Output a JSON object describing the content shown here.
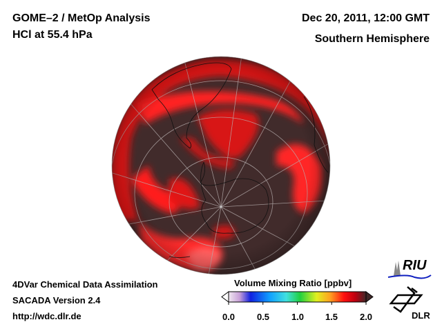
{
  "header": {
    "title": "GOME–2 / MetOp Analysis",
    "subtitle": "HCl at 55.4 hPa",
    "date": "Dec 20, 2011, 12:00 GMT",
    "region": "Southern Hemisphere"
  },
  "footer": {
    "line1": "4DVar Chemical Data Assimilation",
    "line2": "SACADA Version 2.4",
    "line3": "http://wdc.dlr.de"
  },
  "colorbar": {
    "title": "Volume Mixing Ratio [ppbv]",
    "ticks": [
      "0.0",
      "0.5",
      "1.0",
      "1.5",
      "2.0"
    ],
    "range": [
      0.0,
      2.0
    ],
    "colors": [
      "#f0e8f0",
      "#c8a0d8",
      "#1020e0",
      "#10a0ff",
      "#40e0e0",
      "#20d040",
      "#e0f020",
      "#ffa020",
      "#ff1010",
      "#e00010",
      "#402828"
    ]
  },
  "logos": {
    "riu": "RIU",
    "dlr": "DLR"
  },
  "map": {
    "background_color": "#412b2b",
    "high_color": "#ff1a1a"
  }
}
